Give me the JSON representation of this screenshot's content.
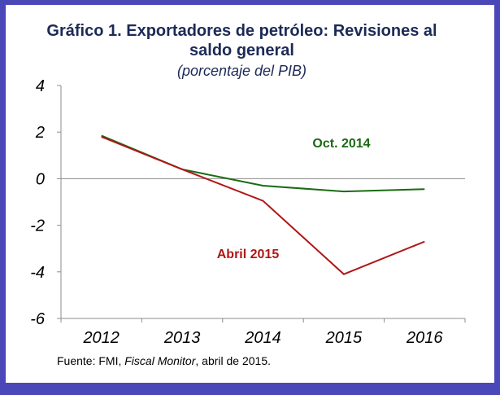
{
  "title_line1": "Gráfico 1. Exportadores de petróleo: Revisiones al",
  "title_line2": "saldo general",
  "subtitle": "(porcentaje del PIB)",
  "source": {
    "prefix": "Fuente: FMI, ",
    "italic": "Fiscal Monitor",
    "suffix": ", abril de 2015."
  },
  "colors": {
    "frame": "#4a47b8",
    "oct_2014": "#1a6b12",
    "abril_2015": "#b01616",
    "axis": "#8c8c8c"
  },
  "chart_data": {
    "type": "line",
    "title": "Gráfico 1. Exportadores de petróleo: Revisiones al saldo general",
    "subtitle": "(porcentaje del PIB)",
    "xlabel": "",
    "ylabel": "",
    "categories": [
      "2012",
      "2013",
      "2014",
      "2015",
      "2016"
    ],
    "ylim": [
      -6,
      4
    ],
    "yticks": [
      4,
      2,
      0,
      -2,
      -4,
      -6
    ],
    "ytick_labels": [
      "4",
      "2",
      "0",
      "-2",
      "-4",
      "-6"
    ],
    "grid": false,
    "series": [
      {
        "name": "Oct. 2014",
        "values": [
          1.85,
          0.4,
          -0.3,
          -0.55,
          -0.45
        ]
      },
      {
        "name": "Abril 2015",
        "values": [
          1.8,
          0.4,
          -0.95,
          -4.1,
          -2.7
        ]
      }
    ]
  }
}
